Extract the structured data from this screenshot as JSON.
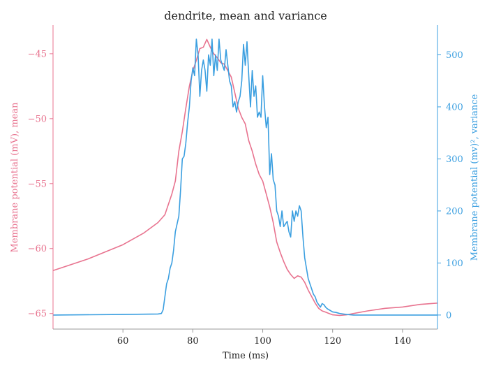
{
  "chart_data": {
    "type": "line",
    "title": "dendrite, mean and variance",
    "xlabel": "Time (ms)",
    "ylabel_left": "Membrane potential (mV), mean",
    "ylabel_right": "Membrane potential (mv)², variance",
    "xlim": [
      40,
      150
    ],
    "ylim_left": [
      -66.2,
      -42.8
    ],
    "ylim_right": [
      -27,
      557
    ],
    "x_ticks": [
      60,
      80,
      100,
      120,
      140
    ],
    "x_tick_labels": [
      "60",
      "80",
      "100",
      "120",
      "140"
    ],
    "y_left_ticks": [
      -45,
      -50,
      -55,
      -60,
      -65
    ],
    "y_left_tick_labels": [
      "−45",
      "−50",
      "−55",
      "−60",
      "−65"
    ],
    "y_right_ticks": [
      0,
      100,
      200,
      300,
      400,
      500
    ],
    "y_right_tick_labels": [
      "0",
      "100",
      "200",
      "300",
      "400",
      "500"
    ],
    "grid": false,
    "colors": {
      "mean": "#e8738f",
      "variance": "#3b9fe0",
      "axis": "#999999"
    },
    "series": [
      {
        "axis": "left",
        "x": [
          40,
          50,
          60,
          66,
          70,
          72,
          74,
          75,
          76,
          77,
          78,
          79,
          80,
          81,
          82,
          83,
          84,
          85,
          86,
          87,
          88,
          89,
          90,
          91,
          92,
          93,
          94,
          95,
          96,
          97,
          98,
          99,
          100,
          101,
          102,
          103,
          104,
          105,
          106,
          107,
          108,
          109,
          110,
          111,
          112,
          113,
          114,
          115,
          116,
          117,
          118,
          119,
          120,
          122,
          124,
          126,
          130,
          135,
          140,
          145,
          150
        ],
        "y": [
          -61.7,
          -60.8,
          -59.7,
          -58.8,
          -58.0,
          -57.4,
          -55.8,
          -54.8,
          -52.5,
          -51.0,
          -49.2,
          -47.5,
          -46.3,
          -45.5,
          -44.6,
          -44.5,
          -43.9,
          -44.5,
          -45.0,
          -45.3,
          -45.7,
          -45.8,
          -46.3,
          -46.8,
          -48.0,
          -49.2,
          -49.9,
          -50.4,
          -51.7,
          -52.5,
          -53.5,
          -54.3,
          -54.8,
          -55.8,
          -56.8,
          -58.0,
          -59.5,
          -60.3,
          -61.0,
          -61.6,
          -62.0,
          -62.3,
          -62.1,
          -62.2,
          -62.6,
          -63.2,
          -63.7,
          -64.2,
          -64.6,
          -64.8,
          -64.9,
          -65.0,
          -65.1,
          -65.15,
          -65.1,
          -65.0,
          -64.8,
          -64.6,
          -64.5,
          -64.3,
          -64.2
        ]
      },
      {
        "axis": "right",
        "x": [
          40,
          60,
          70,
          71,
          71.5,
          72,
          72.5,
          73,
          73.5,
          74,
          74.5,
          75,
          75.5,
          76,
          76.5,
          77,
          77.5,
          78,
          78.5,
          79,
          79.5,
          80,
          80.5,
          81,
          81.5,
          82,
          82.5,
          83,
          83.5,
          84,
          84.5,
          85,
          85.5,
          86,
          86.5,
          87,
          87.5,
          88,
          88.5,
          89,
          89.5,
          90,
          90.5,
          91,
          91.5,
          92,
          92.5,
          93,
          93.5,
          94,
          94.5,
          95,
          95.5,
          96,
          96.5,
          97,
          97.5,
          98,
          98.5,
          99,
          99.5,
          100,
          100.5,
          101,
          101.5,
          102,
          102.5,
          103,
          103.5,
          104,
          104.5,
          105,
          105.5,
          106,
          106.5,
          107,
          107.5,
          108,
          108.5,
          109,
          109.5,
          110,
          110.5,
          111,
          111.5,
          112,
          112.5,
          113,
          113.5,
          114,
          114.5,
          115,
          115.5,
          116,
          116.5,
          117,
          117.5,
          118,
          118.5,
          119,
          119.5,
          120,
          121,
          122,
          123,
          124,
          126,
          130,
          150
        ],
        "y": [
          0,
          1,
          2,
          3,
          10,
          35,
          60,
          70,
          90,
          100,
          125,
          160,
          175,
          190,
          240,
          300,
          305,
          330,
          370,
          400,
          450,
          475,
          460,
          530,
          500,
          420,
          470,
          490,
          470,
          430,
          500,
          480,
          530,
          460,
          500,
          470,
          530,
          490,
          480,
          470,
          510,
          480,
          450,
          440,
          400,
          410,
          390,
          410,
          420,
          450,
          520,
          480,
          525,
          460,
          400,
          470,
          420,
          440,
          380,
          390,
          380,
          460,
          400,
          360,
          380,
          270,
          310,
          260,
          250,
          200,
          190,
          170,
          200,
          170,
          175,
          180,
          160,
          150,
          200,
          180,
          200,
          190,
          210,
          200,
          150,
          110,
          90,
          70,
          60,
          50,
          40,
          35,
          25,
          20,
          15,
          22,
          20,
          15,
          12,
          10,
          8,
          6,
          5,
          3,
          2,
          1,
          0,
          0,
          0
        ],
        "ylim_note": ""
      }
    ]
  }
}
